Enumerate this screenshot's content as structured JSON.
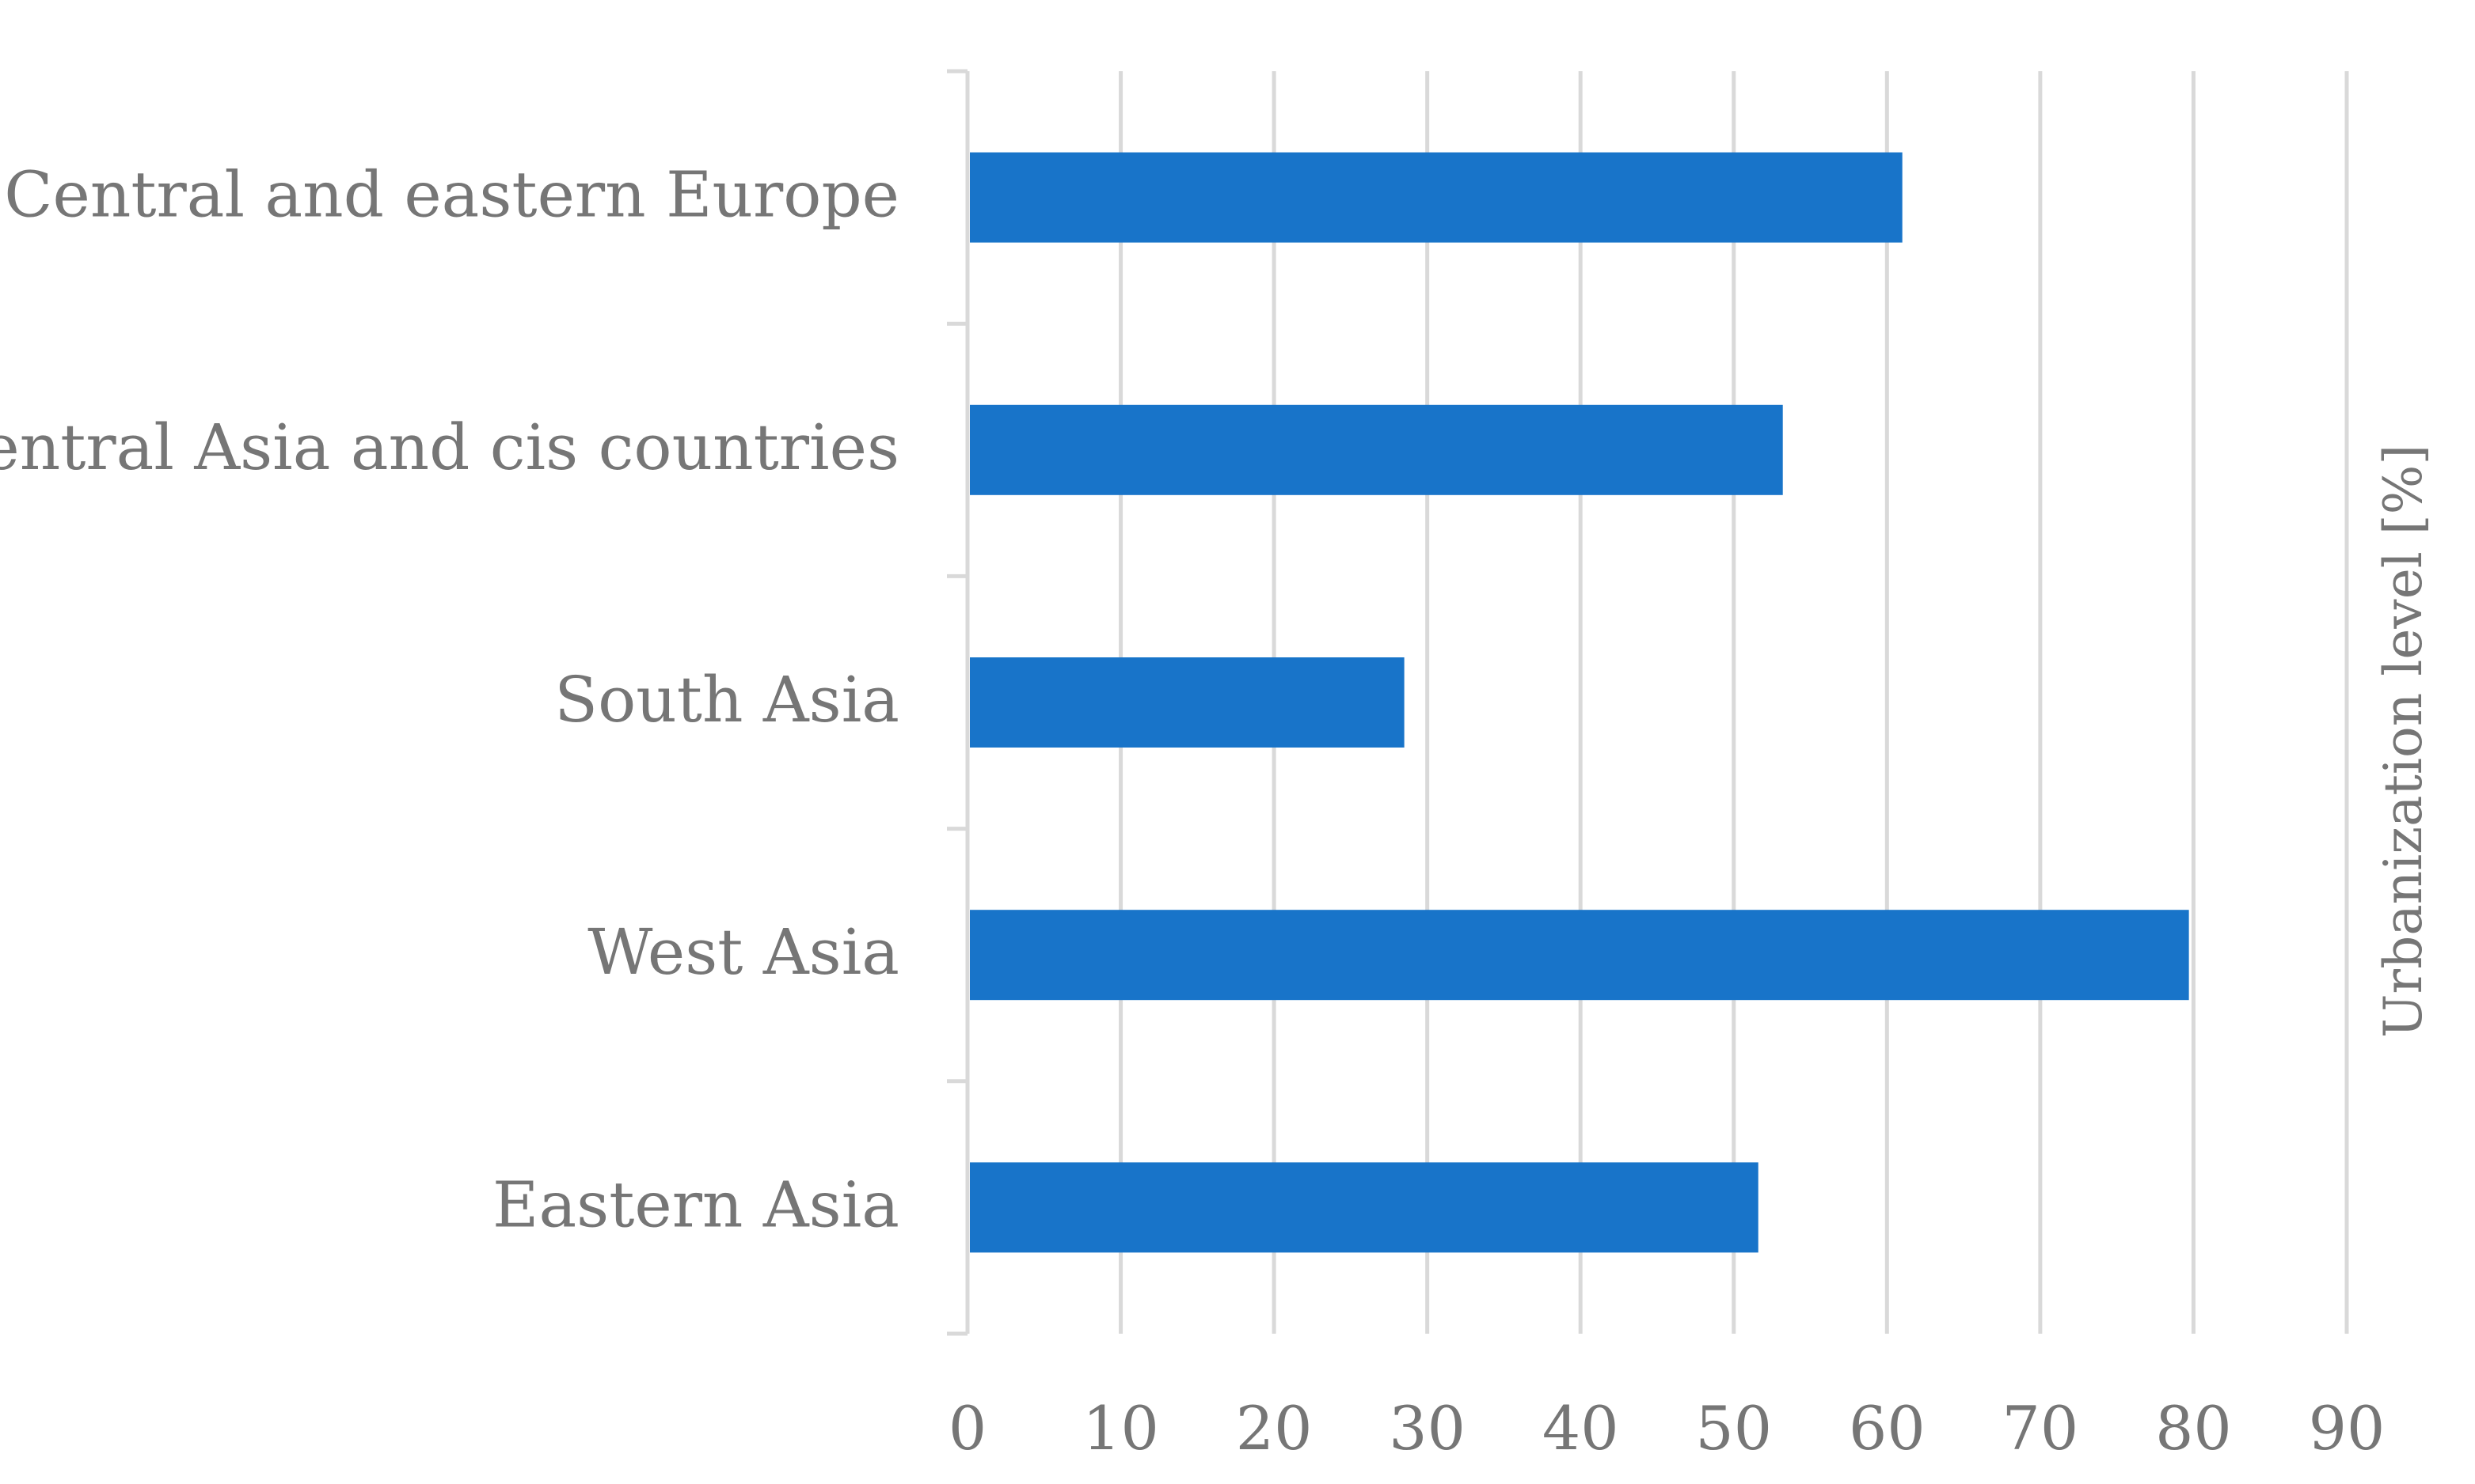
{
  "chart_data": {
    "type": "bar",
    "orientation": "horizontal",
    "categories": [
      "Central and eastern Europe",
      "Central Asia and cis countries",
      "South Asia",
      "West Asia",
      "Eastern Asia"
    ],
    "series": [
      {
        "values": [
          61,
          53.2,
          28.5,
          79.7,
          51.6
        ],
        "color": "#1874C9"
      }
    ],
    "title": "",
    "xlabel": "",
    "ylabel": "Urbanization level [%]",
    "xlim": [
      0,
      90
    ],
    "x_ticks": [
      "0",
      "10",
      "20",
      "30",
      "40",
      "50",
      "60",
      "70",
      "80",
      "90"
    ],
    "grid": "vertical",
    "legend": "none"
  }
}
